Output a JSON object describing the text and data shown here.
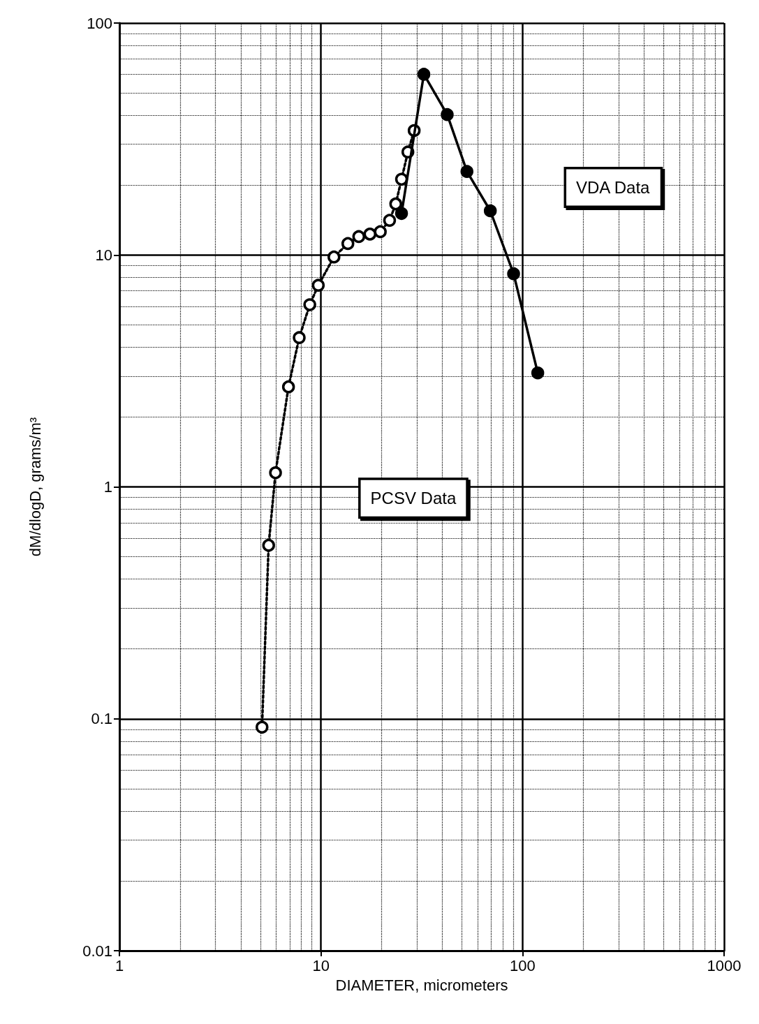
{
  "chart_data": {
    "type": "line",
    "xlabel": "DIAMETER, micrometers",
    "ylabel": "dM/dlogD, grams/m³",
    "log": "xy",
    "xlim": [
      1,
      1000
    ],
    "xticks": [
      1,
      10,
      100,
      1000
    ],
    "ylim": [
      0.01,
      100
    ],
    "yticks": [
      0.01,
      0.1,
      1,
      10,
      100
    ],
    "grid": true,
    "legend": false,
    "series": [
      {
        "name": "PCSV Data",
        "color": "#000000",
        "marker": "circle",
        "line_style": "dotted",
        "x": [
          5.1,
          5.5,
          5.95,
          6.9,
          7.8,
          8.8,
          9.7,
          11.6,
          13.6,
          15.4,
          17.5,
          19.7,
          21.9,
          23.5,
          25.1,
          27.0,
          29.0
        ],
        "values": [
          0.092,
          0.56,
          1.15,
          2.7,
          4.4,
          6.1,
          7.4,
          9.8,
          11.2,
          12.0,
          12.3,
          12.6,
          14.1,
          16.6,
          21.2,
          27.8,
          34.4
        ]
      },
      {
        "name": "VDA Data",
        "color": "#000000",
        "marker": "circle",
        "line_style": "solid",
        "x": [
          25.1,
          32.4,
          42.3,
          53.0,
          69.2,
          90.3,
          119
        ],
        "values": [
          15.1,
          60.1,
          40.3,
          22.9,
          15.5,
          8.3,
          3.1
        ]
      }
    ]
  }
}
